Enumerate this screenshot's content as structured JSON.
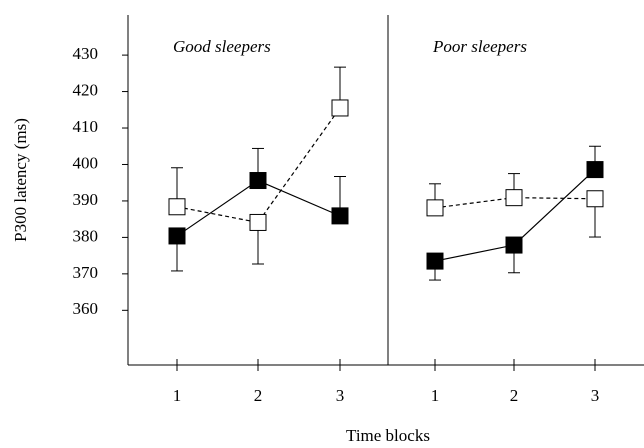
{
  "chart_data": [
    {
      "type": "line",
      "title": "Good sleepers",
      "ylabel": "P300 latency (ms)",
      "xlabel": "Time blocks",
      "categories": [
        "1",
        "2",
        "3"
      ],
      "ylim": [
        345,
        441
      ],
      "yticks": [
        360,
        370,
        380,
        390,
        400,
        410,
        420,
        430
      ],
      "series": [
        {
          "color": "#000000",
          "marker": "filled",
          "dash": false,
          "values": [
            380.4,
            395.6,
            385.9
          ],
          "errors": [
            9.6,
            8.8,
            10.8
          ],
          "error_side": [
            "down",
            "up",
            "up"
          ]
        },
        {
          "color": "#000000",
          "marker": "open",
          "dash": true,
          "values": [
            388.4,
            384.1,
            415.5
          ],
          "errors": [
            10.7,
            11.4,
            11.2
          ],
          "error_side": [
            "up",
            "down",
            "up"
          ]
        }
      ]
    },
    {
      "type": "line",
      "title": "Poor sleepers",
      "categories": [
        "1",
        "2",
        "3"
      ],
      "ylim": [
        345,
        441
      ],
      "series": [
        {
          "color": "#000000",
          "marker": "filled",
          "dash": false,
          "values": [
            373.5,
            377.9,
            398.6
          ],
          "errors": [
            5.2,
            7.6,
            6.4
          ],
          "error_side": [
            "down",
            "down",
            "up"
          ]
        },
        {
          "color": "#000000",
          "marker": "open",
          "dash": true,
          "values": [
            388.1,
            390.9,
            390.6
          ],
          "errors": [
            6.6,
            6.6,
            10.5
          ],
          "error_side": [
            "up",
            "up",
            "down"
          ]
        }
      ]
    }
  ]
}
